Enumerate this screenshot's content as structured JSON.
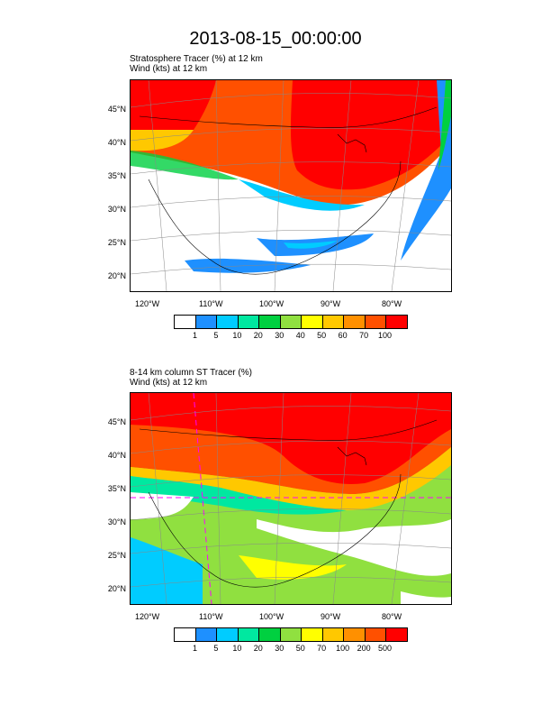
{
  "title": "2013-08-15_00:00:00",
  "panel1": {
    "line1": "Stratosphere Tracer   (%)    at   12 km",
    "line2": "Wind   (kts)    at   12 km",
    "lat_labels": [
      "45°N",
      "40°N",
      "35°N",
      "30°N",
      "25°N",
      "20°N"
    ],
    "lon_labels": [
      "120°W",
      "110°W",
      "100°W",
      "90°W",
      "80°W"
    ],
    "colorbar_labels": [
      "1",
      "5",
      "10",
      "20",
      "30",
      "40",
      "50",
      "60",
      "70",
      "100"
    ]
  },
  "panel2": {
    "line1": "8-14 km column ST Tracer   (%)",
    "line2": "Wind   (kts)    at   12 km",
    "lat_labels": [
      "45°N",
      "40°N",
      "35°N",
      "30°N",
      "25°N",
      "20°N"
    ],
    "lon_labels": [
      "120°W",
      "110°W",
      "100°W",
      "90°W",
      "80°W"
    ],
    "colorbar_labels": [
      "1",
      "5",
      "10",
      "20",
      "30",
      "50",
      "70",
      "100",
      "200",
      "500"
    ]
  },
  "colors": {
    "palette": [
      "#ffffff",
      "#1e90ff",
      "#00ccff",
      "#00e8a0",
      "#00d040",
      "#90e040",
      "#ffff00",
      "#ffc800",
      "#ff9000",
      "#ff5000",
      "#ff0000"
    ]
  }
}
